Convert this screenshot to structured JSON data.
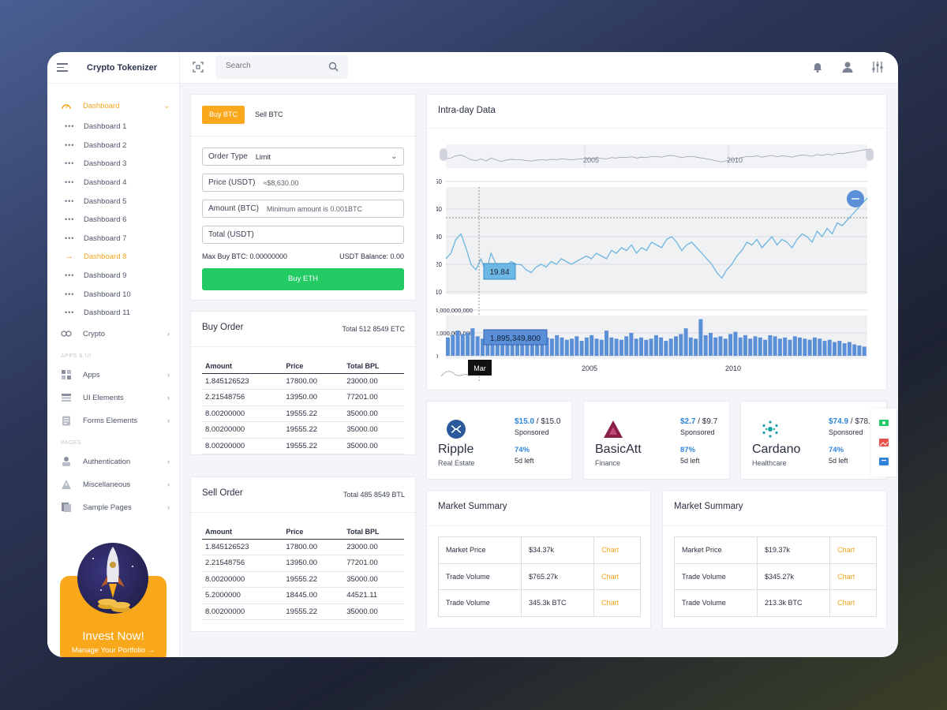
{
  "brand": "Crypto Tokenizer",
  "search": {
    "placeholder": "Search"
  },
  "sidebar": {
    "dashboard": "Dashboard",
    "dashboards": [
      "Dashboard 1",
      "Dashboard 2",
      "Dashboard 3",
      "Dashboard 4",
      "Dashboard 5",
      "Dashboard 6",
      "Dashboard 7",
      "Dashboard 8",
      "Dashboard 9",
      "Dashboard 10",
      "Dashboard 11"
    ],
    "active_index": 7,
    "crypto": "Crypto",
    "section_apps": "APPS & UI",
    "apps": "Apps",
    "ui_elements": "UI Elements",
    "forms_elements": "Forms Elements",
    "section_pages": "PAGES",
    "authentication": "Authentication",
    "miscellaneous": "Miscellaneous",
    "sample_pages": "Sample Pages",
    "promo_title": "Invest Now!",
    "promo_sub": "Manage Your Portfolio →"
  },
  "buy": {
    "tab_buy": "Buy BTC",
    "tab_sell": "Sell BTC",
    "order_type_label": "Order Type",
    "order_type_value": "Limit",
    "price_label": "Price (USDT)",
    "price_value": "≈$8,630.00",
    "amount_label": "Amount (BTC)",
    "amount_hint": "Minimum amount is 0.001BTC",
    "total_label": "Total (USDT)",
    "max_buy": "Max Buy BTC: 0.00000000",
    "balance": "USDT Balance: 0.00",
    "button": "Buy ETH"
  },
  "buy_order": {
    "title": "Buy Order",
    "total": "Total 512 8549 ETC",
    "headers": [
      "Amount",
      "Price",
      "Total BPL"
    ],
    "rows": [
      [
        "1.845126523",
        "17800.00",
        "23000.00"
      ],
      [
        "2.21548756",
        "13950.00",
        "77201.00"
      ],
      [
        "8.00200000",
        "19555.22",
        "35000.00"
      ],
      [
        "8.00200000",
        "19555.22",
        "35000.00"
      ],
      [
        "8.00200000",
        "19555.22",
        "35000.00"
      ]
    ]
  },
  "sell_order": {
    "title": "Sell Order",
    "total": "Total 485 8549 BTL",
    "headers": [
      "Amount",
      "Price",
      "Total BPL"
    ],
    "rows": [
      [
        "1.845126523",
        "17800.00",
        "23000.00"
      ],
      [
        "2.21548756",
        "13950.00",
        "77201.00"
      ],
      [
        "8.00200000",
        "19555.22",
        "35000.00"
      ],
      [
        "5.2000000",
        "18445.00",
        "44521.11"
      ],
      [
        "8.00200000",
        "19555.22",
        "35000.00"
      ]
    ]
  },
  "chart_data": {
    "type": "line",
    "title": "Intra-day Data",
    "navigator_labels": [
      "2005",
      "2010"
    ],
    "price_ticks": [
      "50",
      "40",
      "30",
      "20",
      "10"
    ],
    "volume_ticks": [
      "4,000,000,000",
      "2,000,000,000",
      "0"
    ],
    "x_ticks": [
      "2005",
      "2010"
    ],
    "price_ylim": [
      10,
      50
    ],
    "volume_ylim": [
      0,
      4000000000
    ],
    "price_tooltip": "19.84",
    "volume_tooltip": "1,895,349,800",
    "x_tooltip": "Mar",
    "price_series": [
      22,
      24,
      29,
      31,
      26,
      20,
      18,
      22,
      17,
      24,
      20,
      16,
      19,
      21,
      20,
      19.84,
      18,
      17,
      19,
      20,
      19,
      21,
      20,
      22,
      21,
      20,
      21,
      22,
      23,
      22,
      24,
      23,
      22,
      25,
      24,
      26,
      25,
      27,
      24,
      26,
      25,
      28,
      27,
      26,
      29,
      30,
      28,
      25,
      27,
      28,
      26,
      24,
      22,
      20,
      17,
      15,
      18,
      20,
      23,
      25,
      28,
      27,
      29,
      26,
      28,
      30,
      27,
      29,
      28,
      26,
      29,
      31,
      30,
      28,
      32,
      30,
      33,
      31,
      35,
      34,
      36,
      38,
      40,
      42,
      44
    ],
    "volume_series": [
      1.6,
      1.8,
      2.2,
      1.9,
      2.0,
      2.4,
      1.7,
      1.5,
      1.9,
      2.1,
      1.8,
      1.7,
      1.6,
      2.0,
      1.9,
      1.9,
      1.6,
      1.5,
      1.7,
      1.4,
      1.6,
      1.5,
      1.8,
      1.6,
      1.4,
      1.5,
      1.7,
      1.3,
      1.6,
      1.8,
      1.5,
      1.4,
      2.2,
      1.6,
      1.5,
      1.4,
      1.7,
      2.0,
      1.5,
      1.6,
      1.4,
      1.5,
      1.8,
      1.6,
      1.3,
      1.5,
      1.7,
      1.9,
      2.4,
      1.6,
      1.5,
      3.2,
      1.8,
      2.0,
      1.6,
      1.7,
      1.5,
      1.9,
      2.1,
      1.6,
      1.8,
      1.5,
      1.7,
      1.6,
      1.4,
      1.8,
      1.7,
      1.5,
      1.6,
      1.4,
      1.7,
      1.6,
      1.5,
      1.4,
      1.6,
      1.5,
      1.3,
      1.4,
      1.2,
      1.3,
      1.1,
      1.2,
      1.0,
      0.9,
      0.8
    ]
  },
  "coins": [
    {
      "name": "Ripple",
      "category": "Real Estate",
      "price_now": "$15.0",
      "price_goal": " / $15.0",
      "sponsored": "Sponsored",
      "pct": "74%",
      "days_left": "5d left",
      "color": "#2a5a9c"
    },
    {
      "name": "BasicAtt",
      "category": "Finance",
      "price_now": "$2.7",
      "price_goal": " / $9.7",
      "sponsored": "Sponsored",
      "pct": "87%",
      "days_left": "5d left",
      "color": "#8b1f4a"
    },
    {
      "name": "Cardano",
      "category": "Healthcare",
      "price_now": "$74.9",
      "price_goal": " / $78.",
      "sponsored": "Sponsored",
      "pct": "74%",
      "days_left": "5d left",
      "color": "#1aa0a8"
    }
  ],
  "market": [
    {
      "title": "Market Summary",
      "rows": [
        [
          "Market Price",
          "$34.37k",
          "Chart"
        ],
        [
          "Trade Volume",
          "$765.27k",
          "Chart"
        ],
        [
          "Trade Volume",
          "345.3k BTC",
          "Chart"
        ]
      ]
    },
    {
      "title": "Market Summary",
      "rows": [
        [
          "Market Price",
          "$19.37k",
          "Chart"
        ],
        [
          "Trade Volume",
          "$345.27k",
          "Chart"
        ],
        [
          "Trade Volume",
          "213.3k BTC",
          "Chart"
        ]
      ]
    }
  ]
}
